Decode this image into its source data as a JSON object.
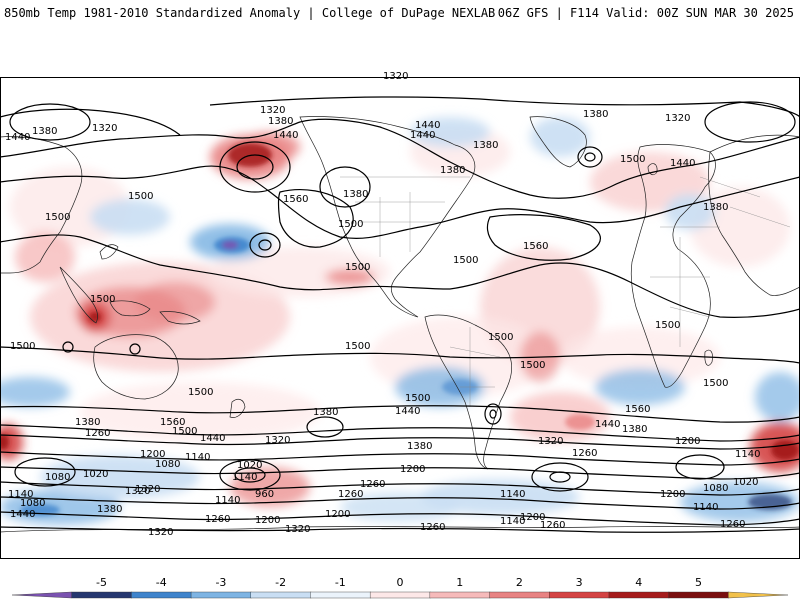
{
  "header": {
    "title_left": "850mb Temp 1981-2010 Standardized Anomaly | College of DuPage NEXLAB",
    "title_right": "06Z GFS | F114 Valid: 00Z SUN MAR 30 2025"
  },
  "colorbar": {
    "ticks": [
      "-5",
      "-4",
      "-3",
      "-2",
      "-1",
      "0",
      "1",
      "2",
      "3",
      "4",
      "5"
    ],
    "colors": [
      "#7a52b0",
      "#25376f",
      "#3f84cc",
      "#7eb4e3",
      "#c9def3",
      "#ebf3fb",
      "#fde8e8",
      "#f6baba",
      "#e88383",
      "#d44343",
      "#a61c1c",
      "#7a0f0f",
      "#f2c14a"
    ]
  },
  "map": {
    "contour_labels": [
      {
        "text": "1320"
      },
      {
        "text": "1320"
      },
      {
        "text": "1380"
      },
      {
        "text": "1440"
      },
      {
        "text": "1380"
      },
      {
        "text": "1320"
      },
      {
        "text": "1440"
      },
      {
        "text": "1380"
      },
      {
        "text": "1440"
      },
      {
        "text": "1380"
      },
      {
        "text": "1500"
      },
      {
        "text": "1440"
      },
      {
        "text": "1320"
      },
      {
        "text": "1380"
      },
      {
        "text": "1440"
      },
      {
        "text": "1500"
      },
      {
        "text": "1380"
      },
      {
        "text": "1560"
      },
      {
        "text": "1500"
      },
      {
        "text": "1500"
      },
      {
        "text": "1380"
      },
      {
        "text": "1500"
      },
      {
        "text": "1500"
      },
      {
        "text": "1560"
      },
      {
        "text": "1500"
      },
      {
        "text": "1500"
      },
      {
        "text": "1500"
      },
      {
        "text": "1500"
      },
      {
        "text": "1500"
      },
      {
        "text": "1500"
      },
      {
        "text": "1500"
      },
      {
        "text": "1500"
      },
      {
        "text": "1500"
      },
      {
        "text": "1380"
      },
      {
        "text": "1440"
      },
      {
        "text": "1380"
      },
      {
        "text": "1260"
      },
      {
        "text": "1560"
      },
      {
        "text": "1500"
      },
      {
        "text": "1440"
      },
      {
        "text": "1320"
      },
      {
        "text": "1380"
      },
      {
        "text": "1320"
      },
      {
        "text": "1560"
      },
      {
        "text": "1440"
      },
      {
        "text": "1380"
      },
      {
        "text": "1200"
      },
      {
        "text": "1140"
      },
      {
        "text": "1260"
      },
      {
        "text": "1200"
      },
      {
        "text": "1140"
      },
      {
        "text": "1080"
      },
      {
        "text": "1020"
      },
      {
        "text": "1020"
      },
      {
        "text": "1080"
      },
      {
        "text": "1140"
      },
      {
        "text": "1320"
      },
      {
        "text": "1140"
      },
      {
        "text": "1200"
      },
      {
        "text": "960"
      },
      {
        "text": "1260"
      },
      {
        "text": "1140"
      },
      {
        "text": "1200"
      },
      {
        "text": "1260"
      },
      {
        "text": "1320"
      },
      {
        "text": "1200"
      },
      {
        "text": "1260"
      },
      {
        "text": "1080"
      },
      {
        "text": "1020"
      },
      {
        "text": "1140"
      },
      {
        "text": "1320"
      },
      {
        "text": "1380"
      },
      {
        "text": "1260"
      },
      {
        "text": "1200"
      },
      {
        "text": "1260"
      },
      {
        "text": "1200"
      },
      {
        "text": "1140"
      },
      {
        "text": "1080"
      },
      {
        "text": "1140"
      },
      {
        "text": "1260"
      },
      {
        "text": "1440"
      },
      {
        "text": "1320"
      }
    ]
  }
}
